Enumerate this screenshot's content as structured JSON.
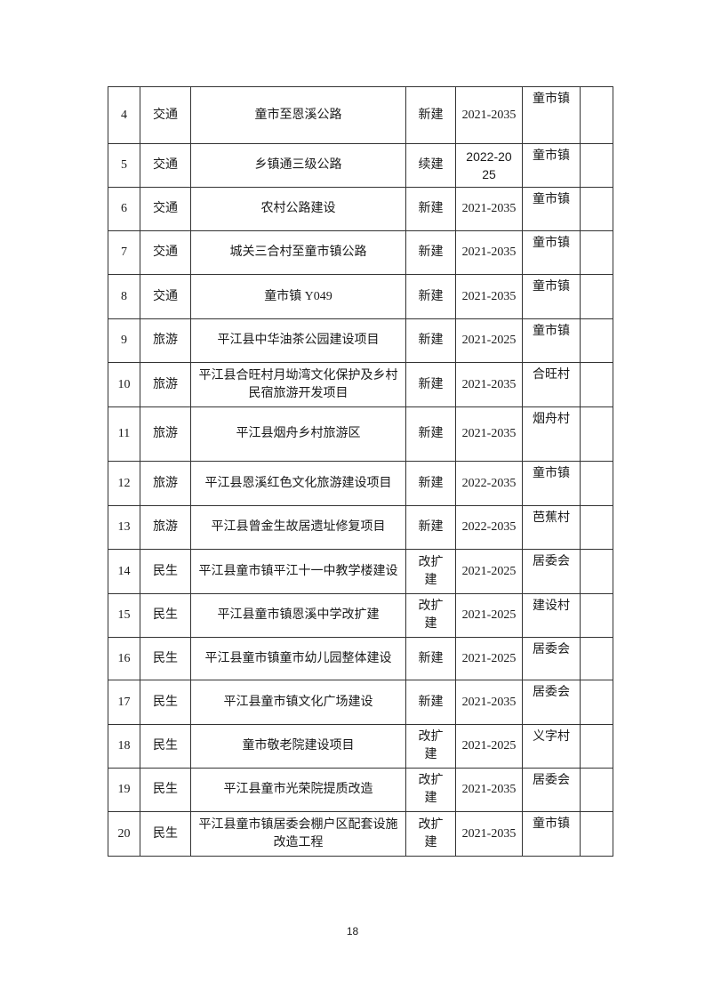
{
  "rows": [
    {
      "no": "4",
      "category": "交通",
      "project": "童市至恩溪公路",
      "type": "新建",
      "period": "2021-2035",
      "location": "童市镇",
      "note": ""
    },
    {
      "no": "5",
      "category": "交通",
      "project": "乡镇通三级公路",
      "type": "续建",
      "period": "2022-2025",
      "location": "童市镇",
      "note": ""
    },
    {
      "no": "6",
      "category": "交通",
      "project": "农村公路建设",
      "type": "新建",
      "period": "2021-2035",
      "location": "童市镇",
      "note": ""
    },
    {
      "no": "7",
      "category": "交通",
      "project": "城关三合村至童市镇公路",
      "type": "新建",
      "period": "2021-2035",
      "location": "童市镇",
      "note": ""
    },
    {
      "no": "8",
      "category": "交通",
      "project": "童市镇  Y049",
      "type": "新建",
      "period": "2021-2035",
      "location": "童市镇",
      "note": ""
    },
    {
      "no": "9",
      "category": "旅游",
      "project": "平江县中华油茶公园建设项目",
      "type": "新建",
      "period": "2021-2025",
      "location": "童市镇",
      "note": ""
    },
    {
      "no": "10",
      "category": "旅游",
      "project": "平江县合旺村月坳湾文化保护及乡村民宿旅游开发项目",
      "type": "新建",
      "period": "2021-2035",
      "location": "合旺村",
      "note": ""
    },
    {
      "no": "11",
      "category": "旅游",
      "project": "平江县烟舟乡村旅游区",
      "type": "新建",
      "period": "2021-2035",
      "location": "烟舟村",
      "note": ""
    },
    {
      "no": "12",
      "category": "旅游",
      "project": "平江县恩溪红色文化旅游建设项目",
      "type": "新建",
      "period": "2022-2035",
      "location": "童市镇",
      "note": ""
    },
    {
      "no": "13",
      "category": "旅游",
      "project": "平江县曾金生故居遗址修复项目",
      "type": "新建",
      "period": "2022-2035",
      "location": "芭蕉村",
      "note": ""
    },
    {
      "no": "14",
      "category": "民生",
      "project": "平江县童市镇平江十一中教学楼建设",
      "type": "改扩建",
      "period": "2021-2025",
      "location": "居委会",
      "note": ""
    },
    {
      "no": "15",
      "category": "民生",
      "project": "平江县童市镇恩溪中学改扩建",
      "type": "改扩建",
      "period": "2021-2025",
      "location": "建设村",
      "note": ""
    },
    {
      "no": "16",
      "category": "民生",
      "project": "平江县童市镇童市幼儿园整体建设",
      "type": "新建",
      "period": "2021-2025",
      "location": "居委会",
      "note": ""
    },
    {
      "no": "17",
      "category": "民生",
      "project": "平江县童市镇文化广场建设",
      "type": "新建",
      "period": "2021-2035",
      "location": "居委会",
      "note": ""
    },
    {
      "no": "18",
      "category": "民生",
      "project": "童市敬老院建设项目",
      "type": "改扩建",
      "period": "2021-2025",
      "location": "义字村",
      "note": ""
    },
    {
      "no": "19",
      "category": "民生",
      "project": "平江县童市光荣院提质改造",
      "type": "改扩建",
      "period": "2021-2035",
      "location": "居委会",
      "note": ""
    },
    {
      "no": "20",
      "category": "民生",
      "project": "平江县童市镇居委会棚户区配套设施改造工程",
      "type": "改扩建",
      "period": "2021-2035",
      "location": "童市镇",
      "note": ""
    }
  ],
  "page_number": "18"
}
